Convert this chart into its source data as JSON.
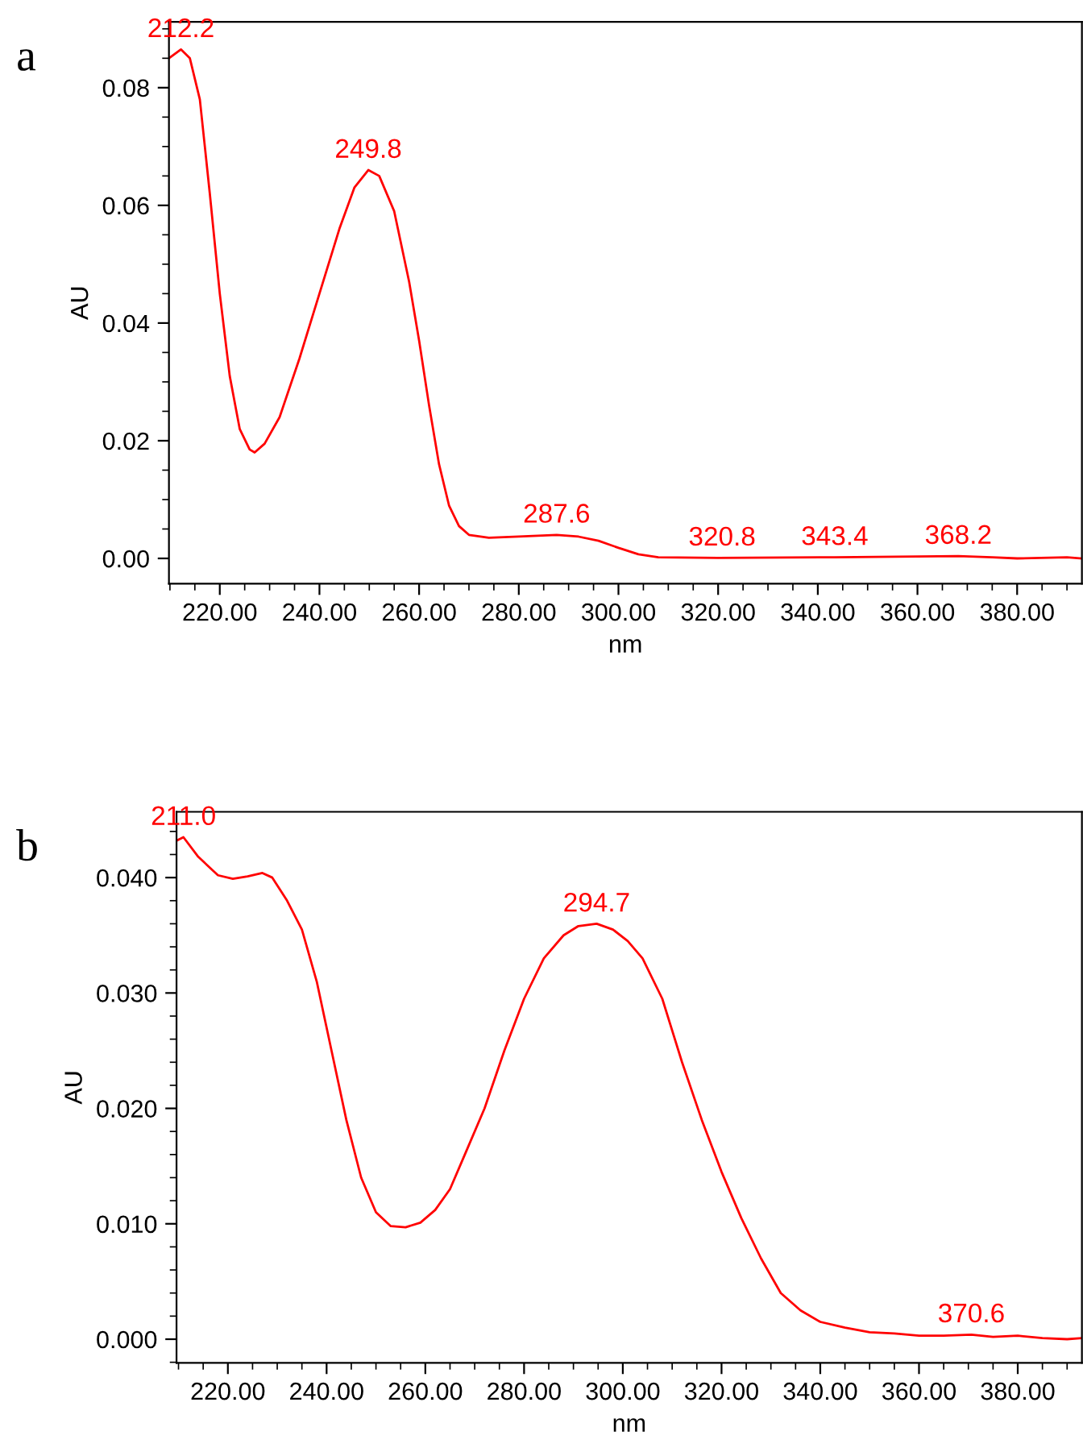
{
  "chart_data": [
    {
      "type": "line",
      "title": "a",
      "xlabel": "nm",
      "ylabel": "AU",
      "series": [
        {
          "color": "#ff0000",
          "x": [
            209.8,
            212.2,
            214,
            216,
            218,
            220,
            222,
            224,
            226,
            227,
            229,
            232,
            236,
            240,
            244,
            247,
            249.8,
            252,
            255,
            258,
            260,
            262,
            264,
            266,
            268,
            270,
            274,
            280,
            287.6,
            292,
            296,
            300,
            304,
            308,
            320,
            343.4,
            368.2,
            375,
            380,
            390,
            393
          ],
          "values": [
            0.085,
            0.0865,
            0.085,
            0.078,
            0.062,
            0.045,
            0.031,
            0.022,
            0.0185,
            0.018,
            0.0195,
            0.024,
            0.034,
            0.045,
            0.056,
            0.063,
            0.066,
            0.065,
            0.059,
            0.047,
            0.037,
            0.026,
            0.016,
            0.009,
            0.0055,
            0.004,
            0.0035,
            0.0037,
            0.004,
            0.0037,
            0.003,
            0.0018,
            0.0007,
            0.0002,
            0.0001,
            0.0002,
            0.0004,
            0.0002,
            0.0,
            0.0002,
            0.0
          ]
        }
      ],
      "xlim": [
        209.8,
        393
      ],
      "ylim": [
        -0.0043,
        0.0912
      ],
      "xticks": [
        {
          "value": 220,
          "label": "220.00"
        },
        {
          "value": 240,
          "label": "240.00"
        },
        {
          "value": 260,
          "label": "260.00"
        },
        {
          "value": 280,
          "label": "280.00"
        },
        {
          "value": 300,
          "label": "300.00"
        },
        {
          "value": 320,
          "label": "320.00"
        },
        {
          "value": 340,
          "label": "340.00"
        },
        {
          "value": 360,
          "label": "360.00"
        },
        {
          "value": 380,
          "label": "380.00"
        }
      ],
      "yticks": [
        {
          "value": 0,
          "label": "0.00"
        },
        0.02,
        0.04,
        0.06,
        0.08
      ],
      "annotations": [
        {
          "text": "212.2",
          "x": 212.2,
          "y": 0.0865
        },
        {
          "text": "249.8",
          "x": 249.8,
          "y": 0.066
        },
        {
          "text": "287.6",
          "x": 287.6,
          "y": 0.004
        },
        {
          "text": "320.8",
          "x": 320.8,
          "y": 0.0001
        },
        {
          "text": "343.4",
          "x": 343.4,
          "y": 0.0002
        },
        {
          "text": "368.2",
          "x": 368.2,
          "y": 0.0004
        }
      ],
      "grid": false,
      "legend": false
    },
    {
      "type": "line",
      "title": "b",
      "xlabel": "nm",
      "ylabel": "AU",
      "series": [
        {
          "color": "#ff0000",
          "x": [
            209.6,
            211,
            214,
            218,
            221,
            224,
            227,
            229,
            232,
            235,
            238,
            241,
            244,
            247,
            250,
            253,
            256,
            259,
            262,
            265,
            268,
            272,
            276,
            280,
            284,
            288,
            291,
            294.7,
            298,
            301,
            304,
            308,
            312,
            316,
            320,
            324,
            328,
            332,
            336,
            340,
            345,
            350,
            355,
            360,
            365,
            370.6,
            375,
            380,
            385,
            390,
            393
          ],
          "values": [
            0.0432,
            0.0435,
            0.0418,
            0.0402,
            0.0399,
            0.0401,
            0.0404,
            0.04,
            0.038,
            0.0355,
            0.031,
            0.025,
            0.019,
            0.014,
            0.011,
            0.0098,
            0.0097,
            0.0101,
            0.0112,
            0.013,
            0.016,
            0.02,
            0.025,
            0.0295,
            0.033,
            0.035,
            0.0358,
            0.036,
            0.0355,
            0.0345,
            0.033,
            0.0295,
            0.024,
            0.019,
            0.0145,
            0.0105,
            0.007,
            0.004,
            0.0025,
            0.0015,
            0.001,
            0.0006,
            0.0005,
            0.0003,
            0.0003,
            0.0004,
            0.0002,
            0.0003,
            0.0001,
            0.0,
            0.0001
          ]
        }
      ],
      "xlim": [
        209.6,
        393
      ],
      "ylim": [
        -0.00205,
        0.0457
      ],
      "xticks": [
        {
          "value": 220,
          "label": "220.00"
        },
        {
          "value": 240,
          "label": "240.00"
        },
        {
          "value": 260,
          "label": "260.00"
        },
        {
          "value": 280,
          "label": "280.00"
        },
        {
          "value": 300,
          "label": "300.00"
        },
        {
          "value": 320,
          "label": "320.00"
        },
        {
          "value": 340,
          "label": "340.00"
        },
        {
          "value": 360,
          "label": "360.00"
        },
        {
          "value": 380,
          "label": "380.00"
        }
      ],
      "yticks": [
        {
          "value": 0,
          "label": "0.000"
        },
        {
          "value": 0.01,
          "label": "0.010"
        },
        {
          "value": 0.02,
          "label": "0.020"
        },
        {
          "value": 0.03,
          "label": "0.030"
        },
        {
          "value": 0.04,
          "label": "0.040"
        }
      ],
      "annotations": [
        {
          "text": "211.0",
          "x": 211.0,
          "y": 0.0435
        },
        {
          "text": "294.7",
          "x": 294.7,
          "y": 0.036
        },
        {
          "text": "370.6",
          "x": 370.6,
          "y": 0.0004
        }
      ],
      "grid": false,
      "legend": false
    }
  ]
}
